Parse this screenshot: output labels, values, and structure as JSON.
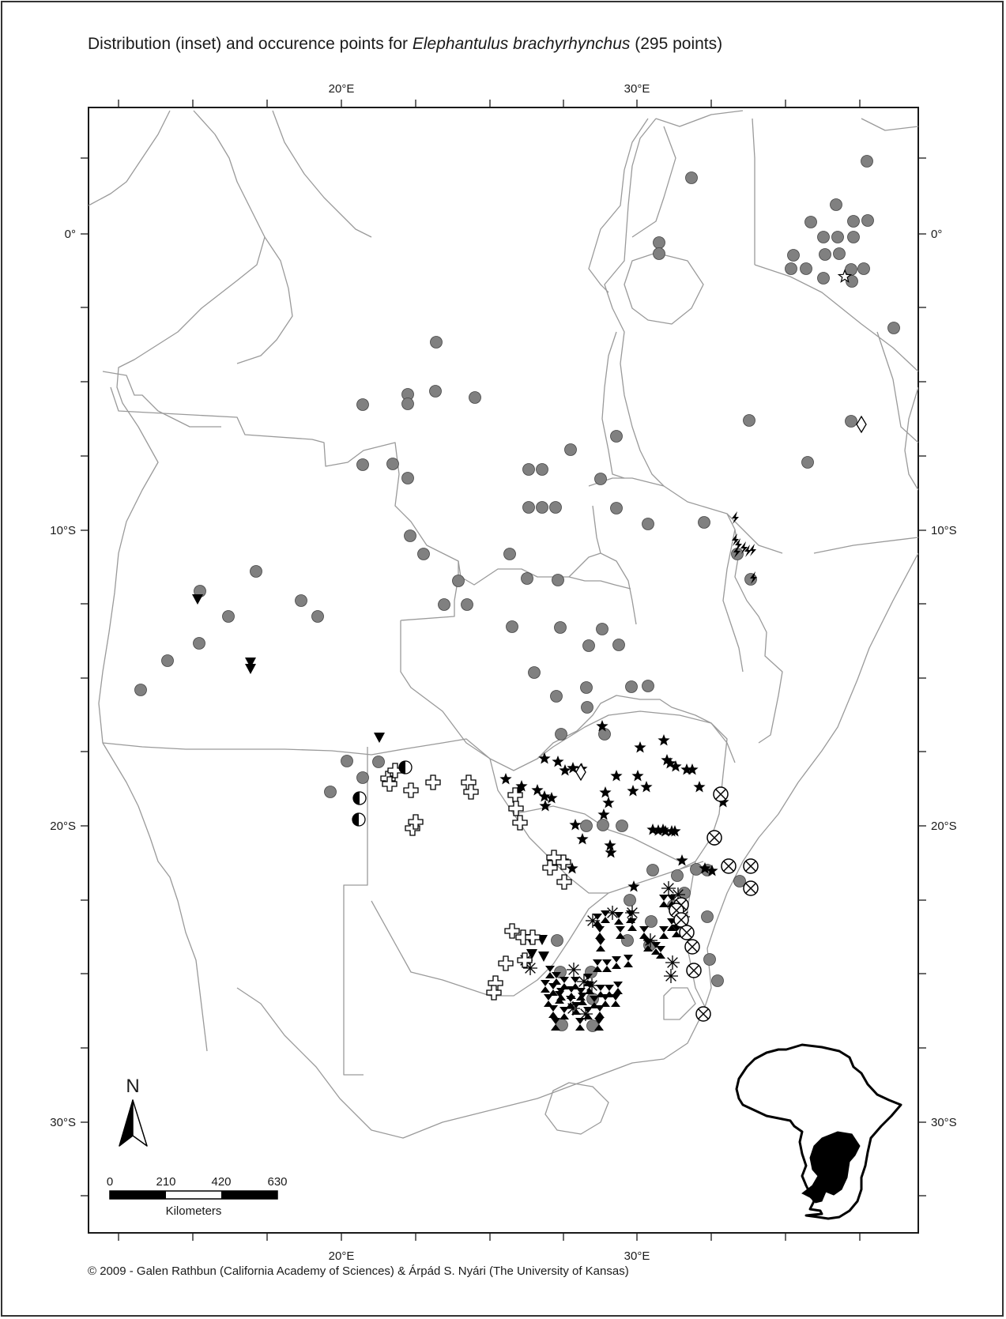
{
  "title": {
    "prefix": "Distribution (inset) and occurence points for ",
    "species": "Elephantulus brachyrhynchus",
    "suffix": "  (295 points)"
  },
  "credit": "© 2009 - Galen Rathbun (California Academy of Sciences) & Árpád S. Nyári (The University of Kansas)",
  "axes": {
    "longitude_labels": [
      "20°E",
      "30°E"
    ],
    "latitude_labels": [
      "0°",
      "10°S",
      "20°S",
      "30°S"
    ]
  },
  "north_arrow": {
    "label": "N"
  },
  "scale_bar": {
    "ticks": [
      "0",
      "210",
      "420",
      "630"
    ],
    "unit": "Kilometers"
  },
  "colors": {
    "border_line": "#9a9a9a",
    "gray_point": "#808080",
    "black_marker": "#000000",
    "inset_fill": "#000000"
  },
  "symbol_legend": {
    "gray-circle": "occurrence point",
    "black-star": "occurrence point",
    "hourglass": "occurrence point",
    "asterisk": "occurrence point",
    "circle-x": "occurrence point",
    "open-cross": "occurrence point",
    "half-circle": "occurrence point",
    "down-triangle": "occurrence point",
    "lightning": "occurrence point",
    "open-diamond": "occurrence point",
    "open-star": "occurrence point"
  }
}
